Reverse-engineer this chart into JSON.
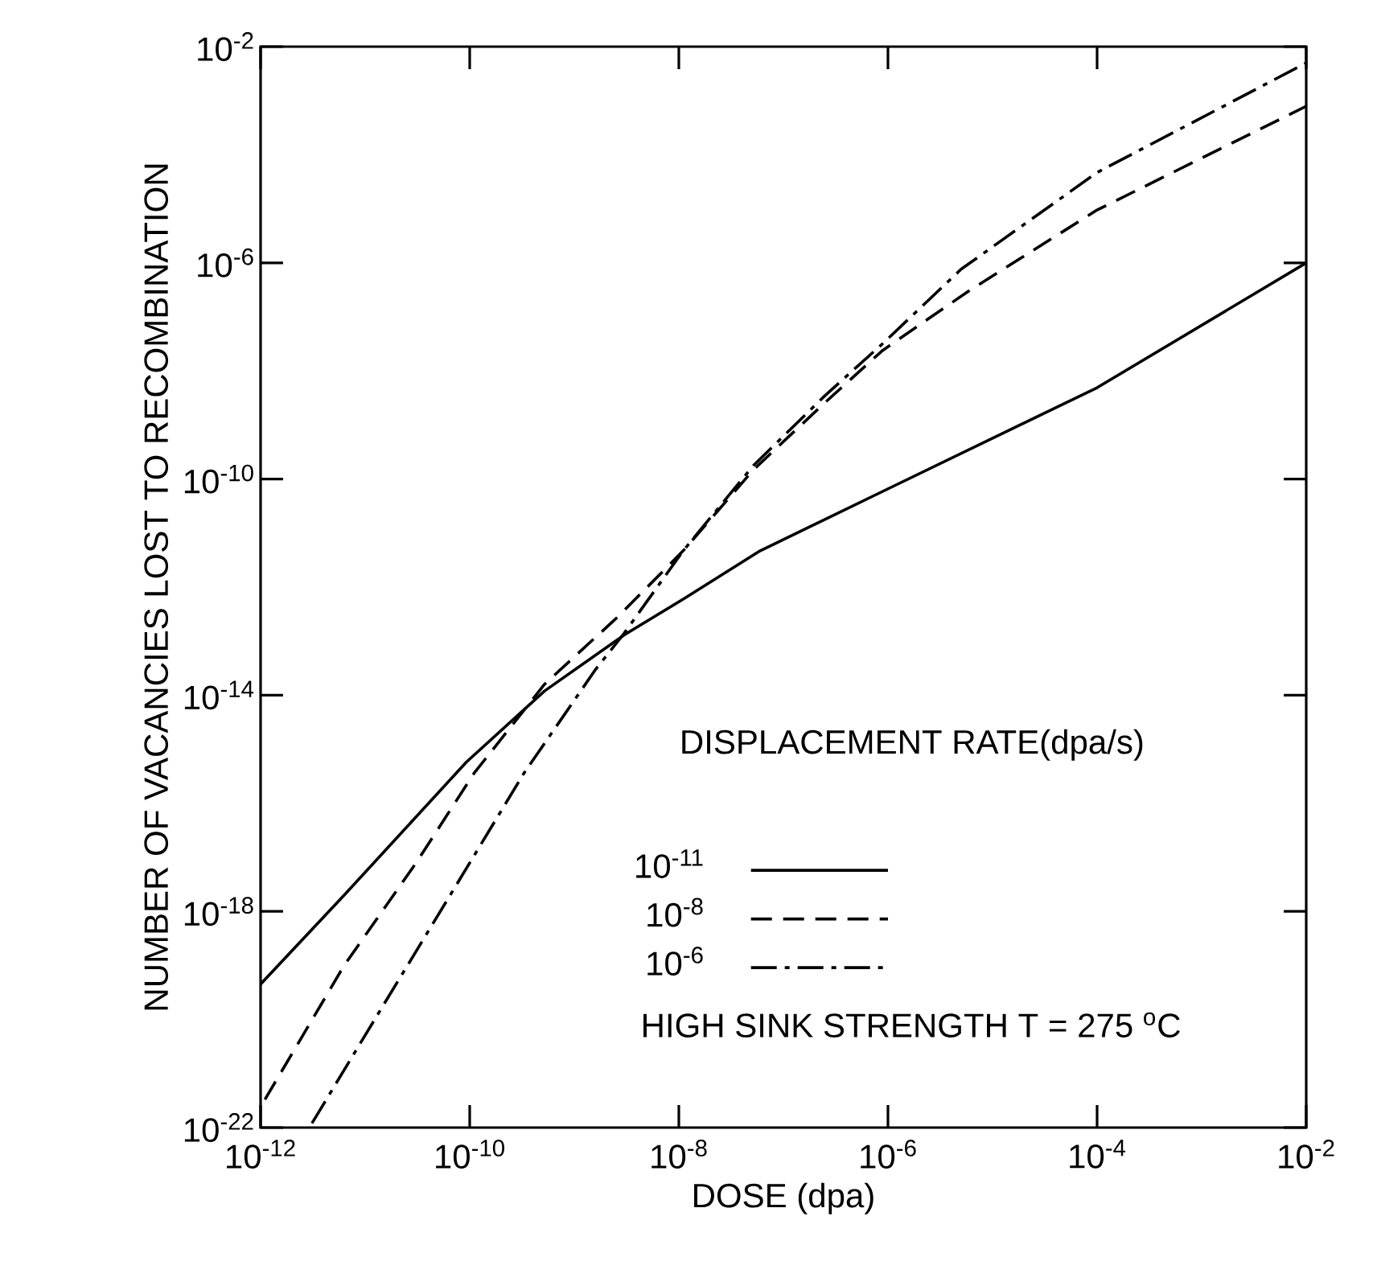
{
  "chart_data": {
    "type": "line",
    "xlabel": "DOSE (dpa)",
    "ylabel": "NUMBER OF VACANCIES LOST TO RECOMBINATION",
    "legend_title": "DISPLACEMENT RATE(dpa/s)",
    "log": "xy",
    "legend": "bottom right",
    "grid": false,
    "marker": "none",
    "annotations": [
      "HIGH SINK STRENGTH  T = 275 $^{o}$C"
    ],
    "xlim": [
      1e-12,
      0.01
    ],
    "ylim": [
      1e-22,
      0.01
    ],
    "xticks": [
      {
        "value": 1e-12,
        "label": "10$^{-12}$"
      },
      {
        "value": 1e-10,
        "label": "10$^{-10}$"
      },
      {
        "value": 1e-08,
        "label": "10$^{-8}$"
      },
      {
        "value": 1e-06,
        "label": "10$^{-6}$"
      },
      {
        "value": 0.0001,
        "label": "10$^{-4}$"
      },
      {
        "value": 0.01,
        "label": "10$^{-2}$"
      }
    ],
    "yticks": [
      {
        "value": 1e-22,
        "label": "10$^{-22}$"
      },
      {
        "value": 1e-18,
        "label": "10$^{-18}$"
      },
      {
        "value": 1e-14,
        "label": "10$^{-14}$"
      },
      {
        "value": 1e-10,
        "label": "10$^{-10}$"
      },
      {
        "value": 1e-06,
        "label": "10$^{-6}$"
      },
      {
        "value": 0.01,
        "label": "10$^{-2}$"
      }
    ],
    "series": [
      {
        "name": "10$^{-11}$",
        "color": "#000000",
        "line_style": "solid",
        "x": [
          1e-12,
          6.3e-12,
          9.3e-11,
          5.2e-10,
          3e-09,
          1.1e-08,
          6e-08,
          8.9e-07,
          0.0001,
          0.01
        ],
        "values": [
          4.5e-20,
          2e-18,
          5.8e-16,
          1.2e-14,
          1.3e-13,
          6e-13,
          4.7e-12,
          5.9e-11,
          4.9e-09,
          1e-06
        ]
      },
      {
        "name": "10$^{-8}$",
        "color": "#000000",
        "line_style": "dashed",
        "x": [
          1.1e-12,
          6.3e-12,
          3.1e-11,
          1.1e-10,
          5.2e-10,
          2.6e-09,
          1.1e-08,
          5.2e-08,
          2.5e-07,
          8.9e-07,
          5.9e-06,
          0.0001,
          0.01
        ],
        "values": [
          3.3e-22,
          1e-19,
          8.1e-18,
          3.6e-16,
          1.6e-14,
          2.8e-13,
          4.7e-12,
          1.5e-10,
          2.6e-09,
          2.4e-08,
          3e-07,
          9.5e-06,
          0.00079
        ]
      },
      {
        "name": "10$^{-6}$",
        "color": "#000000",
        "line_style": "dashdot",
        "x": [
          3.1e-12,
          1.4e-11,
          6.8e-11,
          3.3e-10,
          1.6e-09,
          3e-09,
          1.1e-08,
          5.2e-08,
          2.5e-07,
          8.9e-07,
          5e-06,
          0.0001,
          0.01
        ],
        "values": [
          1.2e-22,
          1.5e-20,
          2.3e-18,
          3.6e-16,
          3e-14,
          1.4e-13,
          4.7e-12,
          1.8e-10,
          3.5e-09,
          3.2e-08,
          7.6e-07,
          4.7e-05,
          0.005
        ]
      }
    ]
  }
}
